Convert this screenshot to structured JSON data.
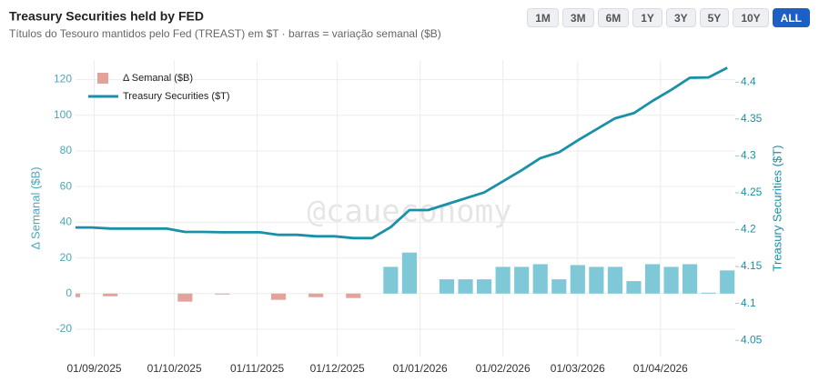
{
  "chart_data": {
    "type": "combo",
    "title": "Treasury Securities held by FED",
    "subtitle": "Títulos do Tesouro mantidos pelo Fed (TREAST) em $T · barras = variação semanal ($B)",
    "watermark": "@caueconomy",
    "y_label": "Δ Semanal ($B)",
    "y2_label": "Treasury Securities ($T)",
    "x": [
      "2025-08-24",
      "2025-08-31",
      "2025-09-07",
      "2025-09-14",
      "2025-09-21",
      "2025-09-28",
      "2025-10-05",
      "2025-10-12",
      "2025-10-19",
      "2025-10-26",
      "2025-11-02",
      "2025-11-09",
      "2025-11-16",
      "2025-11-23",
      "2025-11-30",
      "2025-12-07",
      "2025-12-14",
      "2025-12-21",
      "2025-12-28",
      "2026-01-04",
      "2026-01-11",
      "2026-01-18",
      "2026-01-25",
      "2026-02-01",
      "2026-02-08",
      "2026-02-15",
      "2026-02-22",
      "2026-03-01",
      "2026-03-08",
      "2026-03-15",
      "2026-03-22",
      "2026-03-29",
      "2026-04-05",
      "2026-04-12",
      "2026-04-19",
      "2026-04-26"
    ],
    "series": [
      {
        "name": "Δ Semanal ($B)",
        "type": "bar",
        "color": "#7fc8d8",
        "negative_color": "#e3a39b",
        "values": [
          -2,
          0,
          -1.5,
          0,
          0,
          0,
          -4.5,
          0,
          -0.5,
          0,
          0,
          -3.5,
          0,
          -2,
          0,
          -2.5,
          0,
          15,
          23,
          0,
          8,
          8,
          8,
          15,
          15,
          16.5,
          8,
          16,
          15,
          15,
          7,
          16.5,
          15,
          16.5,
          0.5,
          13
        ]
      },
      {
        "name": "Treasury Securities ($T)",
        "type": "line",
        "axis": "y2",
        "color": "#1a90a8",
        "values": [
          4.203,
          4.203,
          4.2015,
          4.2015,
          4.2015,
          4.2015,
          4.197,
          4.197,
          4.1965,
          4.1965,
          4.1965,
          4.193,
          4.193,
          4.191,
          4.191,
          4.1885,
          4.1885,
          4.2035,
          4.2265,
          4.2265,
          4.2345,
          4.2425,
          4.2505,
          4.2655,
          4.2805,
          4.297,
          4.305,
          4.321,
          4.336,
          4.351,
          4.358,
          4.3745,
          4.3895,
          4.406,
          4.4065,
          4.4195
        ]
      }
    ],
    "xlim": [
      "2025-08-25",
      "2026-04-29"
    ],
    "xticks": [
      {
        "value": "2025-09-01",
        "label": "01/09/2025"
      },
      {
        "value": "2025-10-01",
        "label": "01/10/2025"
      },
      {
        "value": "2025-11-01",
        "label": "01/11/2025"
      },
      {
        "value": "2025-12-01",
        "label": "01/12/2025"
      },
      {
        "value": "2026-01-01",
        "label": "01/01/2026"
      },
      {
        "value": "2026-02-01",
        "label": "01/02/2026"
      },
      {
        "value": "2026-03-01",
        "label": "01/03/2026"
      },
      {
        "value": "2026-04-01",
        "label": "01/04/2026"
      }
    ],
    "ylim": [
      -35.3,
      131
    ],
    "yticks": [
      -20,
      0,
      20,
      40,
      60,
      80,
      100,
      120
    ],
    "y2lim": [
      4.028,
      4.43
    ],
    "y2ticks": [
      4.05,
      4.1,
      4.15,
      4.2,
      4.25,
      4.3,
      4.35,
      4.4
    ],
    "grid": true,
    "legend": "top-left"
  },
  "range_buttons": [
    "1M",
    "3M",
    "6M",
    "1Y",
    "3Y",
    "5Y",
    "10Y",
    "ALL"
  ],
  "active_button": 7
}
